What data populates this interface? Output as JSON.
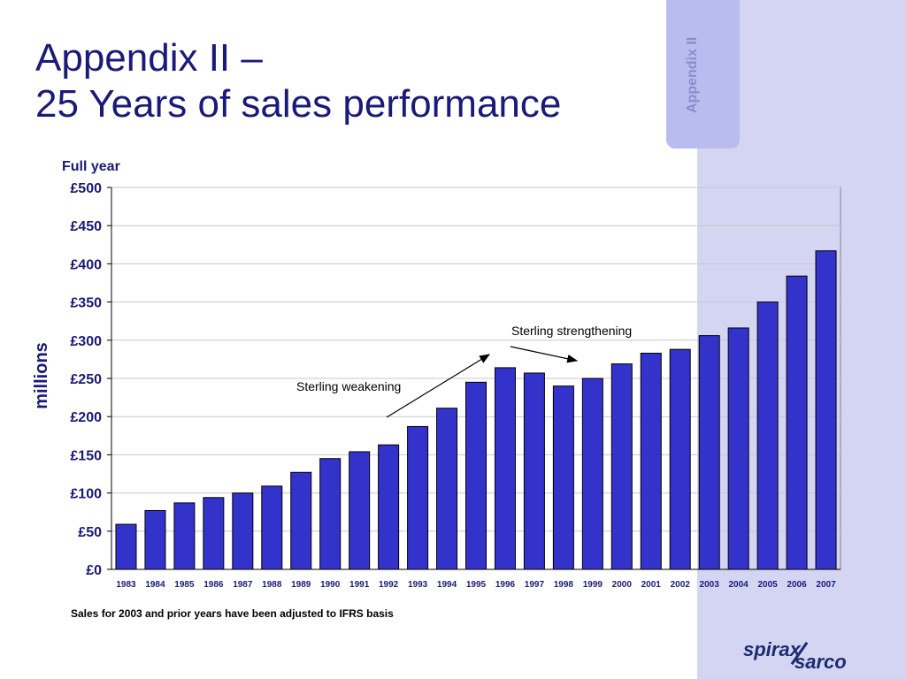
{
  "slide": {
    "title_line1": "Appendix II –",
    "title_line2": "25 Years of sales performance",
    "side_tab_label": "Appendix II",
    "footnote": "Sales for 2003 and prior years have been adjusted to IFRS basis",
    "logo_part1": "spirax",
    "logo_part2": "sarco"
  },
  "colors": {
    "title": "#1a1a7a",
    "bar_fill": "#3333cc",
    "side_band": "#d3d5f3",
    "side_tab": "#b9bcee"
  },
  "chart_data": {
    "type": "bar",
    "title": "Full year",
    "ylabel": "millions",
    "xlabel": "",
    "categories": [
      "1983",
      "1984",
      "1985",
      "1986",
      "1987",
      "1988",
      "1989",
      "1990",
      "1991",
      "1992",
      "1993",
      "1994",
      "1995",
      "1996",
      "1997",
      "1998",
      "1999",
      "2000",
      "2001",
      "2002",
      "2003",
      "2004",
      "2005",
      "2006",
      "2007"
    ],
    "values": [
      59,
      77,
      87,
      94,
      100,
      109,
      127,
      145,
      154,
      163,
      187,
      211,
      245,
      264,
      257,
      240,
      250,
      269,
      283,
      288,
      306,
      316,
      350,
      384,
      417
    ],
    "ylim": [
      0,
      500
    ],
    "yticks": [
      0,
      50,
      100,
      150,
      200,
      250,
      300,
      350,
      400,
      450,
      500
    ],
    "ytick_labels": [
      "£0",
      "£50",
      "£100",
      "£150",
      "£200",
      "£250",
      "£300",
      "£350",
      "£400",
      "£450",
      "£500"
    ],
    "grid": true,
    "annotations": [
      {
        "text": "Sterling weakening"
      },
      {
        "text": "Sterling strengthening"
      }
    ]
  }
}
